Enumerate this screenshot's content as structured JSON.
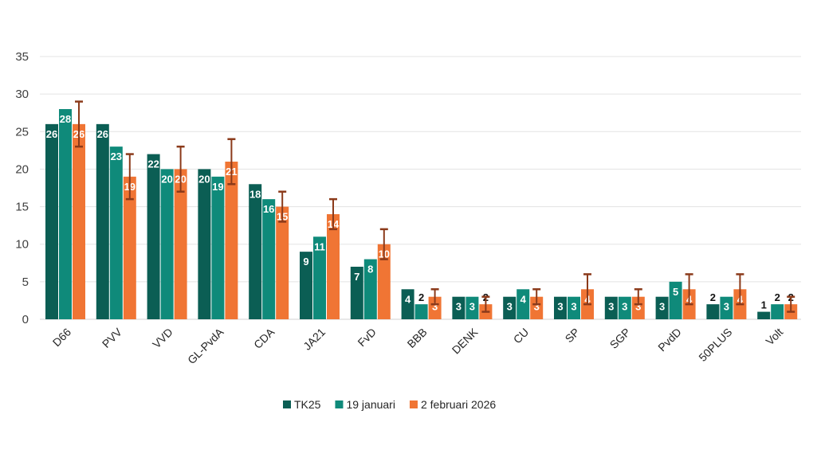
{
  "chart_data": {
    "type": "bar",
    "title": "",
    "xlabel": "",
    "ylabel": "",
    "ylim": [
      0,
      35
    ],
    "yticks": [
      0,
      5,
      10,
      15,
      20,
      25,
      30,
      35
    ],
    "grid": true,
    "legend_position": "bottom",
    "categories": [
      "D66",
      "PVV",
      "VVD",
      "GL-PvdA",
      "CDA",
      "JA21",
      "FvD",
      "BBB",
      "DENK",
      "CU",
      "SP",
      "SGP",
      "PvdD",
      "50PLUS",
      "Volt"
    ],
    "series": [
      {
        "name": "TK25",
        "color": "#0b5e54",
        "values": [
          26,
          26,
          22,
          20,
          18,
          9,
          7,
          4,
          3,
          3,
          3,
          3,
          3,
          2,
          1
        ]
      },
      {
        "name": "19 januari",
        "color": "#0f8a7a",
        "values": [
          28,
          23,
          20,
          19,
          16,
          11,
          8,
          2,
          3,
          4,
          3,
          3,
          5,
          3,
          2
        ]
      },
      {
        "name": "2 februari 2026",
        "color": "#f07534",
        "values": [
          26,
          19,
          20,
          21,
          15,
          14,
          10,
          3,
          2,
          3,
          4,
          3,
          4,
          4,
          2
        ],
        "error_low": [
          23,
          16,
          17,
          18,
          13,
          12,
          8,
          2,
          1,
          2,
          2,
          2,
          2,
          2,
          1
        ],
        "error_high": [
          29,
          22,
          23,
          24,
          17,
          16,
          12,
          4,
          3,
          4,
          6,
          4,
          6,
          6,
          3
        ]
      }
    ],
    "error_bar_color": "#8b3a1a"
  }
}
